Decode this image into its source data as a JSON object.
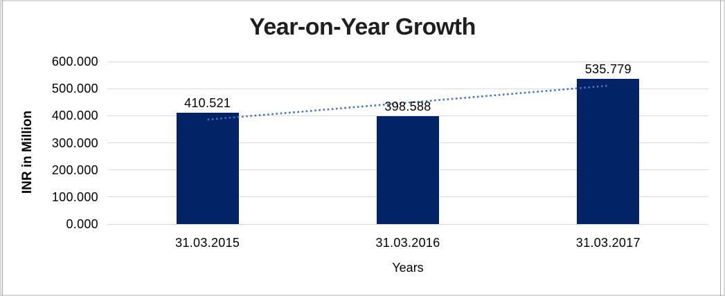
{
  "frame": {
    "background": "#ffffff",
    "outer_border_color": "#d9d9d9",
    "inner_border_color": "#a6a6a6"
  },
  "chart_data": {
    "type": "bar",
    "title": "Year-on-Year Growth",
    "xlabel": "Years",
    "ylabel": "INR in Million",
    "categories": [
      "31.03.2015",
      "31.03.2016",
      "31.03.2017"
    ],
    "series": [
      {
        "name": "INR in Million",
        "values": [
          410.521,
          398.588,
          535.779
        ],
        "color": "#022366"
      }
    ],
    "data_labels": [
      "410.521",
      "398.588",
      "535.779"
    ],
    "ylim": [
      0,
      600
    ],
    "ytick_step": 100,
    "ytick_labels": [
      "0.000",
      "100.000",
      "200.000",
      "300.000",
      "400.000",
      "500.000",
      "600.000"
    ],
    "grid": true,
    "gridline_color": "#d9d9d9",
    "legend": "none",
    "trendline": {
      "type": "linear",
      "style": "dotted",
      "color": "#4472c4",
      "endpoint_values": [
        385.667,
        510.925
      ]
    }
  }
}
